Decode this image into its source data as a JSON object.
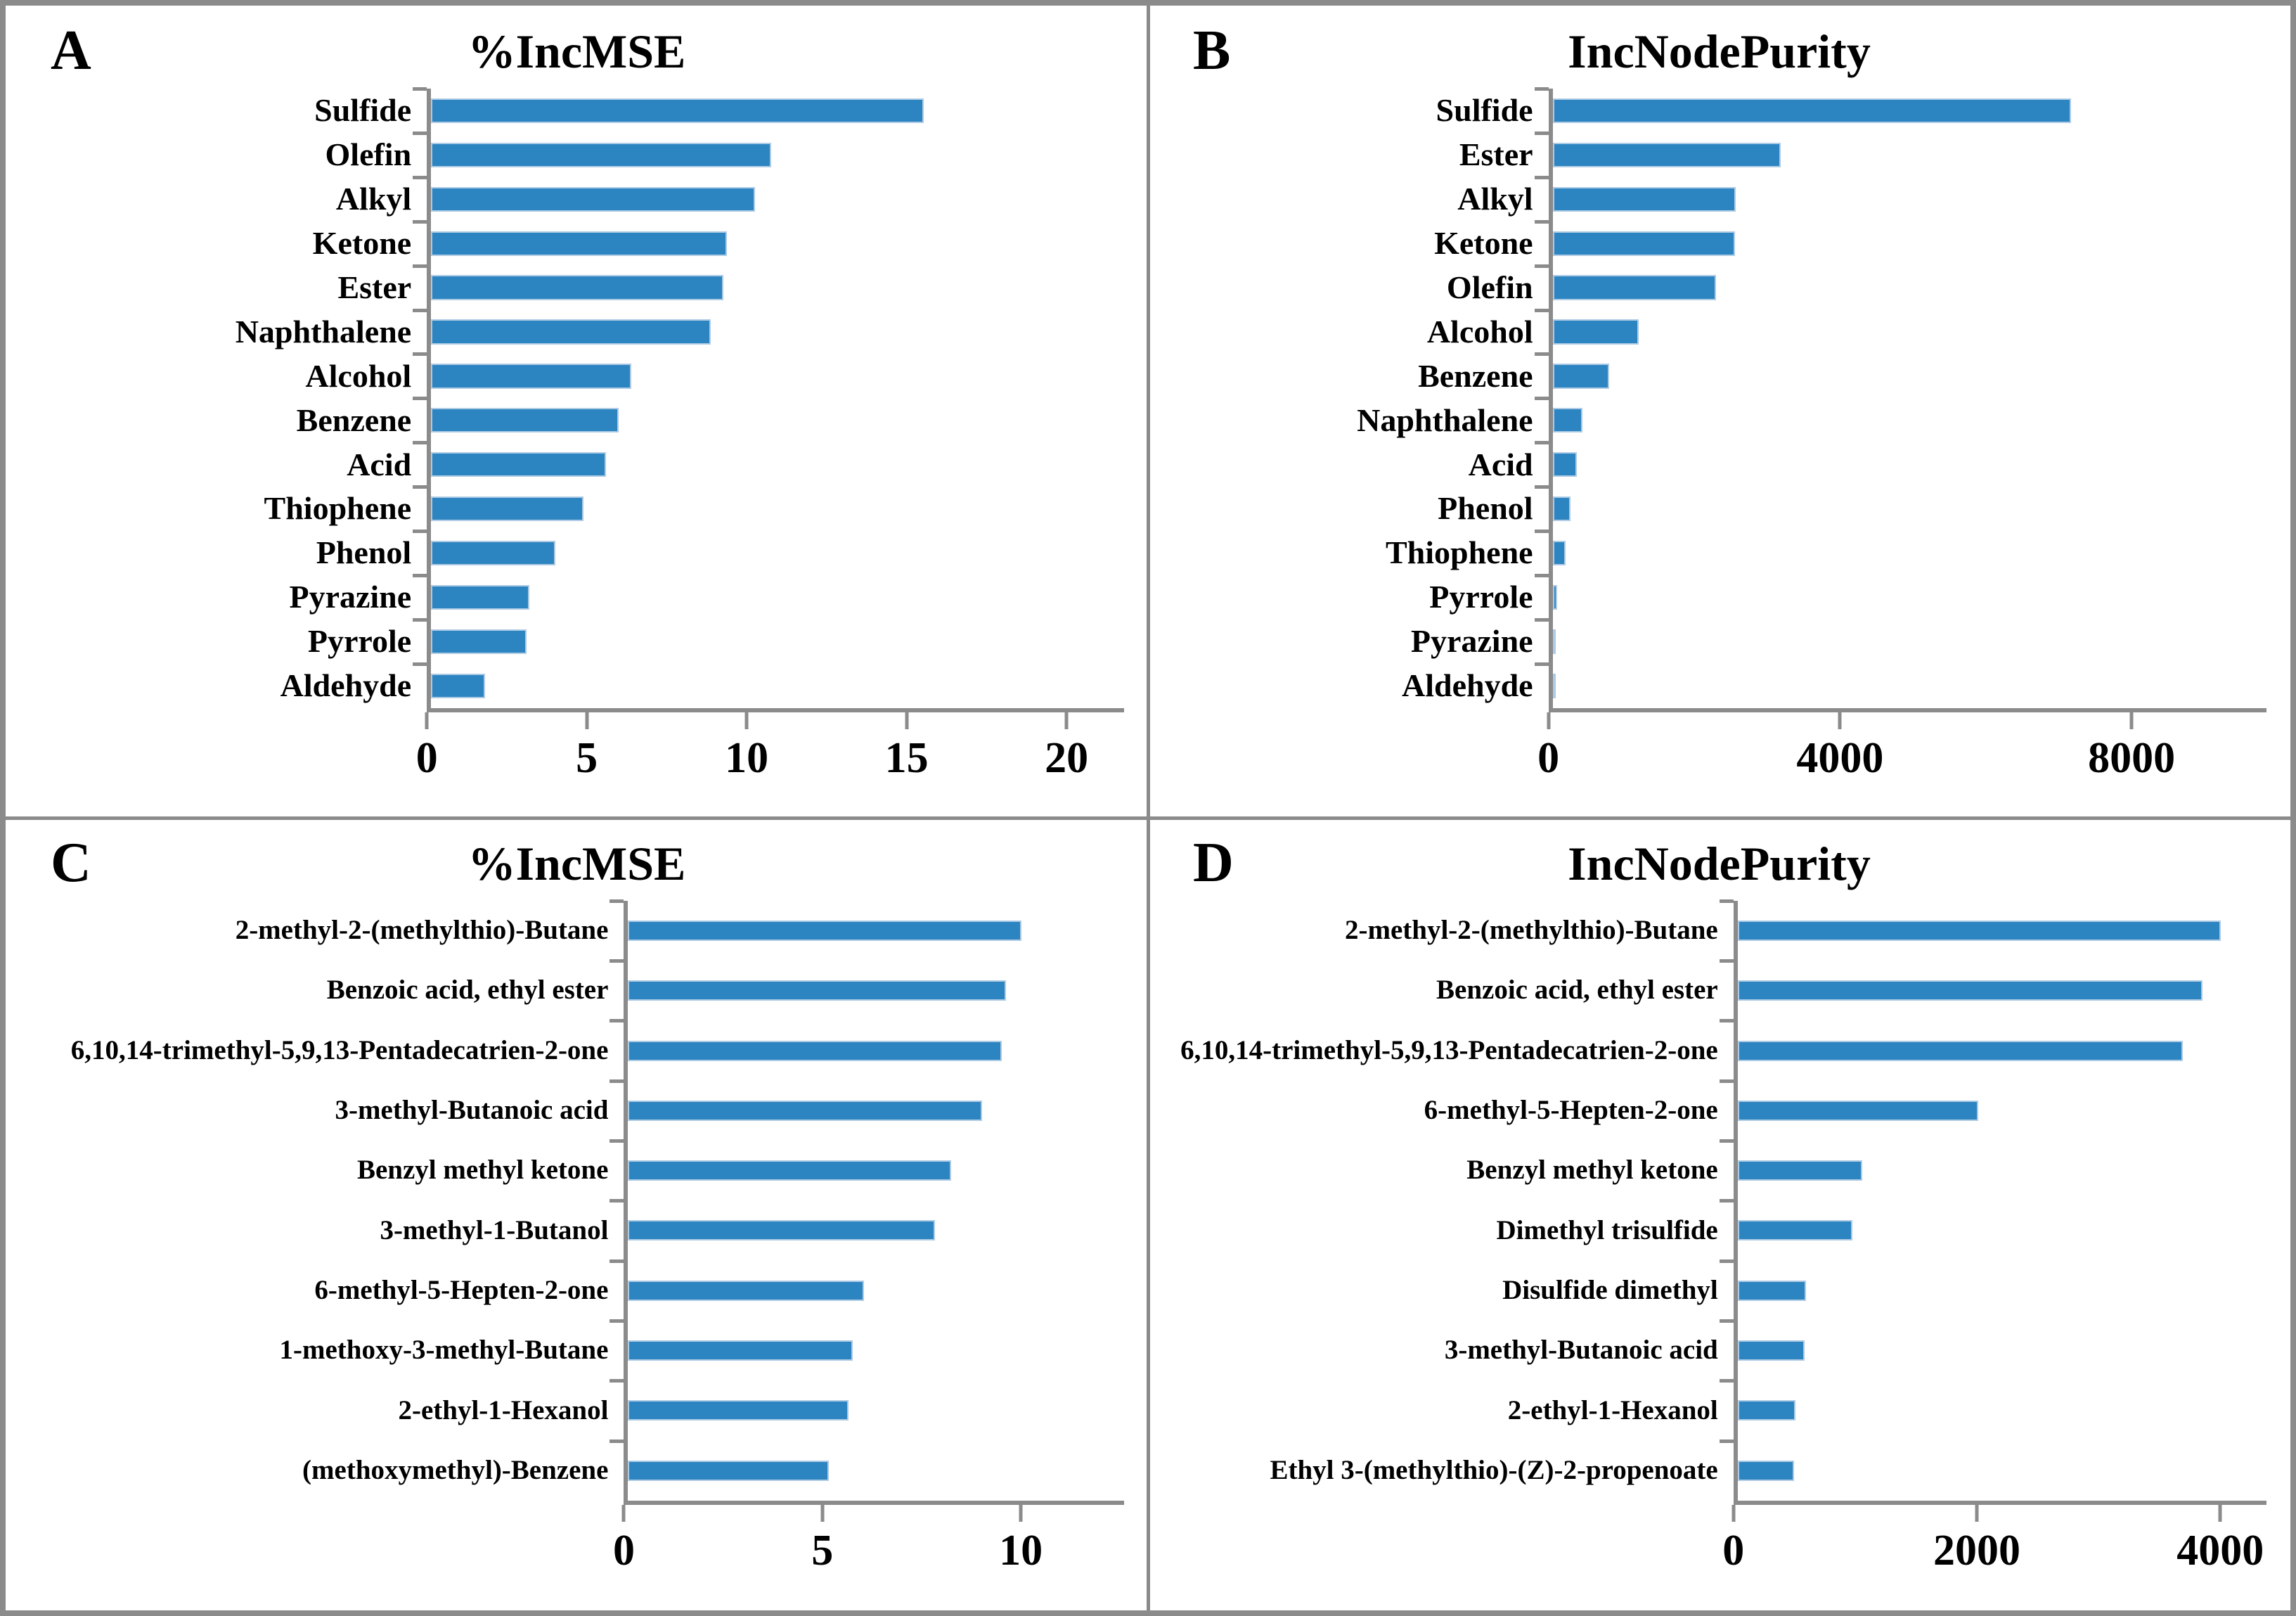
{
  "figure": {
    "panels": [
      {
        "letter": "A",
        "title": "%IncMSE"
      },
      {
        "letter": "B",
        "title": "IncNodePurity"
      },
      {
        "letter": "C",
        "title": "%IncMSE"
      },
      {
        "letter": "D",
        "title": "IncNodePurity"
      }
    ]
  },
  "colors": {
    "bar": "#2c84c1",
    "bar_border": "#aecbe4",
    "axis": "#8b8b8b",
    "frame": "#8b8b8b",
    "text": "#000000"
  },
  "chart_data": [
    {
      "type": "bar",
      "orientation": "horizontal",
      "panel": "A",
      "title": "%IncMSE",
      "categories": [
        "Sulfide",
        "Olefin",
        "Alkyl",
        "Ketone",
        "Ester",
        "Naphthalene",
        "Alcohol",
        "Benzene",
        "Acid",
        "Thiophene",
        "Phenol",
        "Pyrazine",
        "Pyrrole",
        "Aldehyde"
      ],
      "values": [
        15.5,
        10.7,
        10.2,
        9.3,
        9.2,
        8.8,
        6.3,
        5.9,
        5.5,
        4.8,
        3.9,
        3.1,
        3.0,
        1.7
      ],
      "xticks": [
        0,
        5,
        10,
        15,
        20
      ],
      "xlim": [
        0,
        21.8
      ],
      "grid": false,
      "legend": null
    },
    {
      "type": "bar",
      "orientation": "horizontal",
      "panel": "B",
      "title": "IncNodePurity",
      "categories": [
        "Sulfide",
        "Ester",
        "Alkyl",
        "Ketone",
        "Olefin",
        "Alcohol",
        "Benzene",
        "Naphthalene",
        "Acid",
        "Phenol",
        "Thiophene",
        "Pyrrole",
        "Pyrazine",
        "Aldehyde"
      ],
      "values": [
        7150,
        3150,
        2530,
        2520,
        2250,
        1190,
        780,
        410,
        330,
        250,
        180,
        65,
        40,
        5
      ],
      "xticks": [
        0,
        4000,
        8000
      ],
      "xlim": [
        0,
        9850
      ],
      "grid": false,
      "legend": null
    },
    {
      "type": "bar",
      "orientation": "horizontal",
      "panel": "C",
      "title": "%IncMSE",
      "categories": [
        "2-methyl-2-(methylthio)-Butane",
        "Benzoic acid, ethyl ester",
        "6,10,14-trimethyl-5,9,13-Pentadecatrien-2-one",
        "3-methyl-Butanoic acid",
        "Benzyl methyl ketone",
        "3-methyl-1-Butanol",
        "6-methyl-5-Hepten-2-one",
        "1-methoxy-3-methyl-Butane",
        "2-ethyl-1-Hexanol",
        "(methoxymethyl)-Benzene"
      ],
      "values": [
        10.0,
        9.6,
        9.5,
        9.0,
        8.2,
        7.8,
        6.0,
        5.7,
        5.6,
        5.1
      ],
      "xticks": [
        0,
        5,
        10
      ],
      "xlim": [
        0,
        12.6
      ],
      "grid": false,
      "legend": null
    },
    {
      "type": "bar",
      "orientation": "horizontal",
      "panel": "D",
      "title": "IncNodePurity",
      "categories": [
        "2-methyl-2-(methylthio)-Butane",
        "Benzoic acid, ethyl ester",
        "6,10,14-trimethyl-5,9,13-Pentadecatrien-2-one",
        "6-methyl-5-Hepten-2-one",
        "Benzyl methyl ketone",
        "Dimethyl trisulfide",
        "Disulfide dimethyl",
        "3-methyl-Butanoic acid",
        "2-ethyl-1-Hexanol",
        "Ethyl 3-(methylthio)-(Z)-2-propenoate"
      ],
      "values": [
        4000,
        3850,
        3690,
        1990,
        1035,
        950,
        565,
        555,
        480,
        470
      ],
      "xticks": [
        0,
        2000,
        4000
      ],
      "xlim": [
        0,
        4380
      ],
      "grid": false,
      "legend": null
    }
  ]
}
